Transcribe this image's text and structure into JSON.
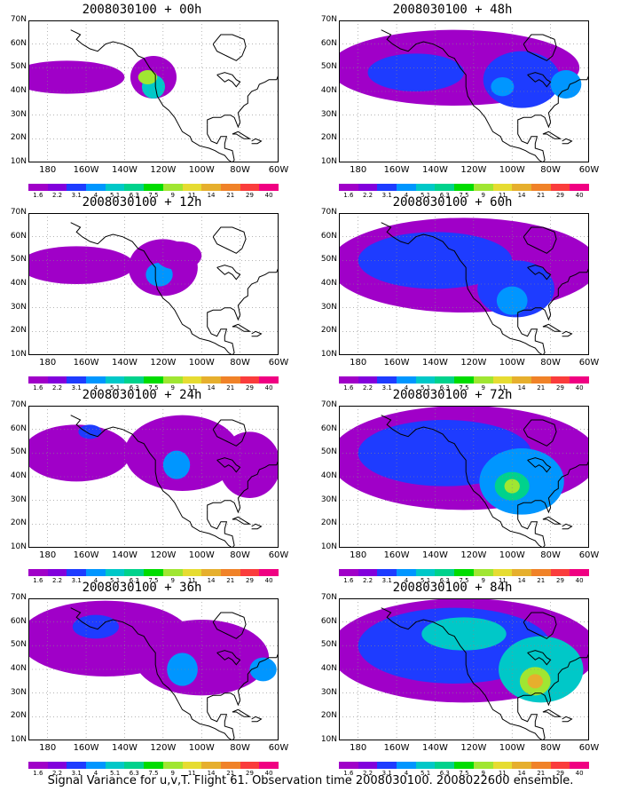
{
  "caption": "Signal Variance for u,v,T. Flight 61. Observation time 2008030100. 2008022600 ensemble.",
  "lat_labels": [
    "70N",
    "60N",
    "50N",
    "40N",
    "30N",
    "20N",
    "10N"
  ],
  "lon_labels": [
    "180",
    "160W",
    "140W",
    "120W",
    "100W",
    "80W",
    "60W"
  ],
  "colorbar": {
    "labels": [
      "1.6",
      "2.2",
      "3.1",
      "4",
      "5.1",
      "6.3",
      "7.5",
      "9",
      "11",
      "14",
      "21",
      "29",
      "40"
    ],
    "colors": [
      "#a000c8",
      "#8200dc",
      "#1e3cff",
      "#0096ff",
      "#00c8c8",
      "#00d28c",
      "#00dc00",
      "#a0e632",
      "#e6dc32",
      "#e6af2d",
      "#f08228",
      "#fa3c3c",
      "#f00082"
    ]
  },
  "panels": [
    {
      "title": "2008030100 + 00h",
      "level": 0.1
    },
    {
      "title": "2008030100 + 12h",
      "level": 0.25
    },
    {
      "title": "2008030100 + 24h",
      "level": 0.4
    },
    {
      "title": "2008030100 + 36h",
      "level": 0.55
    },
    {
      "title": "2008030100 + 48h",
      "level": 0.6
    },
    {
      "title": "2008030100 + 60h",
      "level": 0.7
    },
    {
      "title": "2008030100 + 72h",
      "level": 0.85
    },
    {
      "title": "2008030100 + 84h",
      "level": 1.0
    }
  ]
}
